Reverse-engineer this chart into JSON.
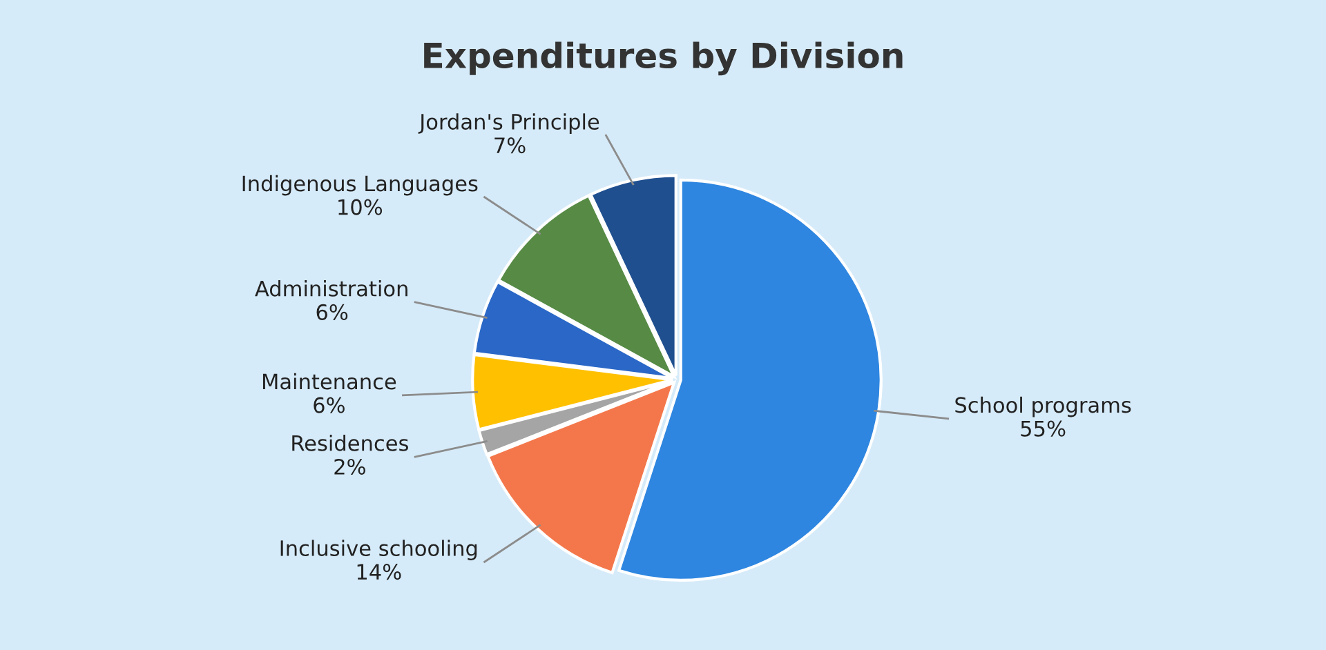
{
  "chart_data": {
    "type": "pie",
    "title": "Expenditures by Division",
    "categories": [
      "School programs",
      "Inclusive schooling",
      "Residences",
      "Maintenance",
      "Administration",
      "Indigenous Languages",
      "Jordan's Principle"
    ],
    "values": [
      55,
      14,
      2,
      6,
      6,
      10,
      7
    ],
    "value_labels": [
      "55%",
      "14%",
      "2%",
      "6%",
      "6%",
      "10%",
      "7%"
    ],
    "colors": [
      "#2e86e0",
      "#f4774b",
      "#a5a5a5",
      "#ffc000",
      "#2a67c7",
      "#568a45",
      "#1f4f8f"
    ]
  }
}
